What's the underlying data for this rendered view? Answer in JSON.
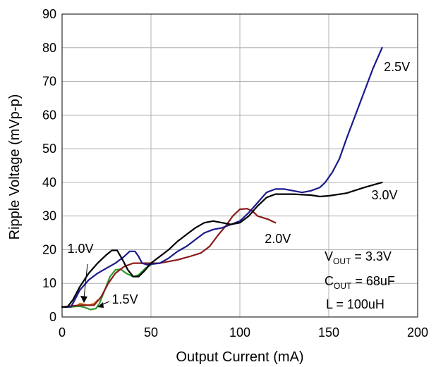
{
  "chart_data": {
    "type": "line",
    "xlabel": "Output Current (mA)",
    "ylabel": "Ripple Voltage (mVp-p)",
    "xlim": [
      0,
      200
    ],
    "ylim": [
      0,
      90
    ],
    "xticks": [
      0,
      50,
      100,
      150,
      200
    ],
    "yticks": [
      0,
      10,
      20,
      30,
      40,
      50,
      60,
      70,
      80,
      90
    ],
    "grid": true,
    "series": [
      {
        "name": "1.0V",
        "color": "#e07020",
        "points": [
          [
            0,
            3
          ],
          [
            5,
            3
          ],
          [
            8,
            3.2
          ],
          [
            10,
            4
          ],
          [
            12,
            3.8
          ],
          [
            15,
            3.5
          ],
          [
            18,
            4
          ],
          [
            20,
            5
          ]
        ]
      },
      {
        "name": "1.5V",
        "color": "#2a9a2a",
        "points": [
          [
            0,
            3
          ],
          [
            5,
            3
          ],
          [
            10,
            3.2
          ],
          [
            13,
            2.8
          ],
          [
            16,
            2.2
          ],
          [
            19,
            2.5
          ],
          [
            21,
            4
          ],
          [
            24,
            8
          ],
          [
            27,
            12
          ],
          [
            30,
            14
          ],
          [
            33,
            14.2
          ],
          [
            36,
            13
          ],
          [
            40,
            12
          ],
          [
            43,
            12.5
          ],
          [
            47,
            14.5
          ],
          [
            50,
            15.5
          ]
        ]
      },
      {
        "name": "2.0V",
        "color": "#8b1a1a",
        "points": [
          [
            0,
            3
          ],
          [
            10,
            3.5
          ],
          [
            18,
            3.5
          ],
          [
            22,
            6
          ],
          [
            26,
            10
          ],
          [
            30,
            13
          ],
          [
            35,
            15
          ],
          [
            40,
            16
          ],
          [
            45,
            16
          ],
          [
            50,
            16
          ],
          [
            55,
            16
          ],
          [
            60,
            16.5
          ],
          [
            65,
            17
          ],
          [
            72,
            18
          ],
          [
            78,
            19
          ],
          [
            83,
            21
          ],
          [
            88,
            24.5
          ],
          [
            92,
            27
          ],
          [
            96,
            30
          ],
          [
            100,
            32
          ],
          [
            104,
            32.2
          ],
          [
            107,
            31.5
          ],
          [
            110,
            30
          ],
          [
            113,
            29.5
          ],
          [
            116,
            29
          ],
          [
            120,
            28
          ]
        ]
      },
      {
        "name": "2.5V",
        "color": "#1a1a8b",
        "points": [
          [
            0,
            3
          ],
          [
            5,
            3
          ],
          [
            8,
            6
          ],
          [
            10,
            8
          ],
          [
            15,
            11
          ],
          [
            20,
            13
          ],
          [
            25,
            14.5
          ],
          [
            30,
            16
          ],
          [
            35,
            18
          ],
          [
            38,
            19.5
          ],
          [
            41,
            19.5
          ],
          [
            43,
            18
          ],
          [
            45,
            16
          ],
          [
            48,
            15.5
          ],
          [
            50,
            15.7
          ],
          [
            55,
            16
          ],
          [
            60,
            17.5
          ],
          [
            65,
            19.5
          ],
          [
            70,
            21
          ],
          [
            75,
            23
          ],
          [
            80,
            25
          ],
          [
            85,
            26
          ],
          [
            90,
            26.5
          ],
          [
            95,
            27.5
          ],
          [
            100,
            28.5
          ],
          [
            105,
            31
          ],
          [
            110,
            34
          ],
          [
            115,
            37
          ],
          [
            120,
            38
          ],
          [
            125,
            38
          ],
          [
            130,
            37.5
          ],
          [
            135,
            37
          ],
          [
            140,
            37.5
          ],
          [
            145,
            38.5
          ],
          [
            148,
            40
          ],
          [
            152,
            43
          ],
          [
            156,
            47
          ],
          [
            160,
            53
          ],
          [
            165,
            60
          ],
          [
            170,
            67
          ],
          [
            175,
            74
          ],
          [
            180,
            80
          ]
        ]
      },
      {
        "name": "3.0V",
        "color": "#000000",
        "points": [
          [
            0,
            3
          ],
          [
            3,
            3
          ],
          [
            6,
            5
          ],
          [
            10,
            9
          ],
          [
            15,
            13
          ],
          [
            20,
            16
          ],
          [
            25,
            18.5
          ],
          [
            28,
            19.8
          ],
          [
            31,
            19.8
          ],
          [
            34,
            17
          ],
          [
            37,
            14
          ],
          [
            40,
            12
          ],
          [
            43,
            12
          ],
          [
            46,
            13.5
          ],
          [
            50,
            16
          ],
          [
            55,
            18
          ],
          [
            60,
            20
          ],
          [
            65,
            22.5
          ],
          [
            70,
            24.5
          ],
          [
            75,
            26.5
          ],
          [
            80,
            28
          ],
          [
            85,
            28.5
          ],
          [
            90,
            28
          ],
          [
            95,
            27.5
          ],
          [
            100,
            28
          ],
          [
            105,
            30
          ],
          [
            110,
            33
          ],
          [
            115,
            35.5
          ],
          [
            120,
            36.5
          ],
          [
            130,
            36.5
          ],
          [
            140,
            36.2
          ],
          [
            145,
            35.8
          ],
          [
            150,
            36
          ],
          [
            160,
            36.8
          ],
          [
            170,
            38.5
          ],
          [
            180,
            40
          ]
        ]
      }
    ],
    "series_labels": [
      {
        "text": "2.5V",
        "x": 181,
        "y": 73
      },
      {
        "text": "3.0V",
        "x": 174,
        "y": 35
      },
      {
        "text": "2.0V",
        "x": 114,
        "y": 22
      },
      {
        "text": "1.0V",
        "x": 3,
        "y": 19
      },
      {
        "text": "1.5V",
        "x": 28,
        "y": 4
      }
    ],
    "annotations": {
      "vout_main": "V",
      "vout_sub": "OUT",
      "vout_rest": " = 3.3V",
      "cout_main": "C",
      "cout_sub": "OUT",
      "cout_rest": " = 68uF",
      "l_text": "L = 100uH"
    }
  }
}
